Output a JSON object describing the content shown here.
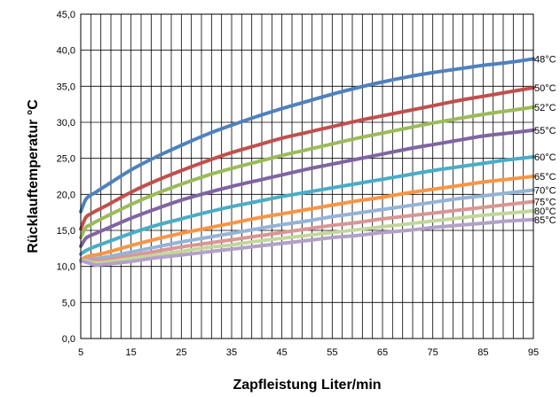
{
  "chart_data": {
    "type": "line",
    "title": "",
    "xlabel": "Zapfleistung Liter/min",
    "ylabel": "Rücklauftemperatur °C",
    "xlim": [
      5,
      95
    ],
    "ylim": [
      0,
      45
    ],
    "x_ticks": [
      5,
      15,
      25,
      35,
      45,
      55,
      65,
      75,
      85,
      95
    ],
    "y_ticks": [
      "0,0",
      "5,0",
      "10,0",
      "15,0",
      "20,0",
      "25,0",
      "30,0",
      "35,0",
      "40,0",
      "45,0"
    ],
    "grid": true,
    "legend": "labels at line ends (right)",
    "x": [
      5,
      6,
      7,
      8,
      10,
      15,
      20,
      25,
      30,
      35,
      40,
      45,
      50,
      55,
      60,
      65,
      70,
      75,
      80,
      85,
      90,
      95
    ],
    "series": [
      {
        "name": "48°C",
        "color": "#4F81BD",
        "values": [
          17.6,
          19.3,
          19.9,
          20.3,
          21.2,
          23.4,
          25.2,
          26.8,
          28.3,
          29.6,
          30.8,
          31.9,
          32.9,
          33.9,
          34.8,
          35.6,
          36.3,
          36.9,
          37.4,
          37.9,
          38.3,
          38.8
        ]
      },
      {
        "name": "50°C",
        "color": "#C0504D",
        "values": [
          15.2,
          16.8,
          17.3,
          17.7,
          18.4,
          20.3,
          21.9,
          23.3,
          24.6,
          25.8,
          26.8,
          27.8,
          28.6,
          29.4,
          30.2,
          30.9,
          31.6,
          32.3,
          33.0,
          33.6,
          34.2,
          34.8
        ]
      },
      {
        "name": "52°C",
        "color": "#9BBB59",
        "values": [
          14.0,
          15.4,
          15.8,
          16.2,
          16.9,
          18.6,
          20.1,
          21.4,
          22.6,
          23.6,
          24.5,
          25.4,
          26.2,
          27.0,
          27.8,
          28.5,
          29.2,
          29.9,
          30.5,
          31.1,
          31.6,
          32.1
        ]
      },
      {
        "name": "55°C",
        "color": "#8064A2",
        "values": [
          12.8,
          13.9,
          14.3,
          14.6,
          15.2,
          16.7,
          18.0,
          19.2,
          20.2,
          21.1,
          21.9,
          22.7,
          23.5,
          24.2,
          24.9,
          25.6,
          26.3,
          26.9,
          27.5,
          28.1,
          28.5,
          28.9
        ]
      },
      {
        "name": "60°C",
        "color": "#4BACC6",
        "values": [
          11.7,
          12.2,
          12.5,
          12.8,
          13.3,
          14.6,
          15.7,
          16.6,
          17.5,
          18.3,
          19.0,
          19.7,
          20.3,
          20.9,
          21.5,
          22.1,
          22.7,
          23.3,
          23.8,
          24.3,
          24.8,
          25.2
        ]
      },
      {
        "name": "65°C",
        "color": "#F79646",
        "values": [
          10.9,
          11.3,
          11.5,
          11.6,
          11.9,
          12.9,
          13.8,
          14.6,
          15.3,
          16.0,
          16.7,
          17.3,
          17.9,
          18.5,
          19.1,
          19.6,
          20.2,
          20.7,
          21.2,
          21.7,
          22.1,
          22.5
        ]
      },
      {
        "name": "70°C",
        "color": "#95B3D7",
        "values": [
          10.7,
          11.0,
          11.1,
          11.1,
          11.3,
          12.0,
          12.7,
          13.4,
          14.0,
          14.6,
          15.2,
          15.8,
          16.3,
          16.9,
          17.4,
          17.9,
          18.4,
          18.9,
          19.4,
          19.8,
          20.2,
          20.6
        ]
      },
      {
        "name": "75°C",
        "color": "#D99694",
        "values": [
          10.8,
          10.9,
          10.9,
          10.8,
          10.9,
          11.5,
          12.1,
          12.7,
          13.2,
          13.7,
          14.2,
          14.7,
          15.2,
          15.7,
          16.1,
          16.6,
          17.0,
          17.4,
          17.8,
          18.2,
          18.6,
          19.0
        ]
      },
      {
        "name": "80°C",
        "color": "#C3D69B",
        "values": [
          10.8,
          10.8,
          10.6,
          10.5,
          10.6,
          11.1,
          11.6,
          12.1,
          12.6,
          13.0,
          13.5,
          13.9,
          14.3,
          14.7,
          15.1,
          15.5,
          15.9,
          16.3,
          16.7,
          17.1,
          17.4,
          17.7
        ]
      },
      {
        "name": "85°C",
        "color": "#B2A1C7",
        "values": [
          10.8,
          10.6,
          10.4,
          10.2,
          10.3,
          10.7,
          11.2,
          11.6,
          12.0,
          12.4,
          12.8,
          13.2,
          13.6,
          14.0,
          14.3,
          14.7,
          15.0,
          15.4,
          15.7,
          16.0,
          16.3,
          16.5
        ]
      }
    ]
  }
}
